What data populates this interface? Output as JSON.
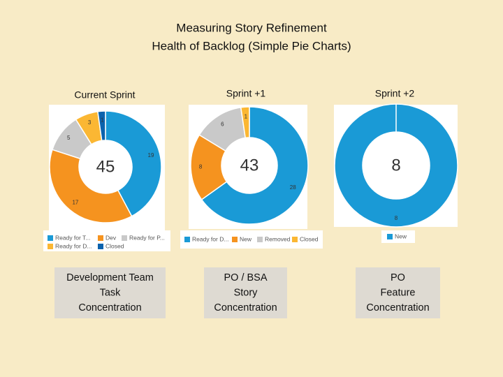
{
  "title": [
    "Measuring Story Refinement",
    "Health of Backlog (Simple Pie Charts)"
  ],
  "chart_data": [
    {
      "type": "donut",
      "title": "Current Sprint",
      "total": 45,
      "categories": [
        "Ready for T...",
        "Dev",
        "Ready for P...",
        "Ready for D...",
        "Closed"
      ],
      "values": [
        19,
        17,
        5,
        3,
        1
      ],
      "colors": [
        "#1a9ad6",
        "#f5931f",
        "#c9c9c9",
        "#fbb733",
        "#0b62ad"
      ]
    },
    {
      "type": "donut",
      "title": "Sprint +1",
      "total": 43,
      "categories": [
        "Ready for D...",
        "New",
        "Removed",
        "Closed"
      ],
      "values": [
        28,
        8,
        6,
        1
      ],
      "colors": [
        "#1a9ad6",
        "#f5931f",
        "#c9c9c9",
        "#fbb733"
      ]
    },
    {
      "type": "donut",
      "title": "Sprint +2",
      "total": 8,
      "categories": [
        "New"
      ],
      "values": [
        8
      ],
      "colors": [
        "#1a9ad6"
      ]
    }
  ],
  "captions": [
    [
      "Development Team",
      "Task",
      "Concentration"
    ],
    [
      "PO / BSA",
      "Story",
      "Concentration"
    ],
    [
      "PO",
      "Feature",
      "Concentration"
    ]
  ]
}
